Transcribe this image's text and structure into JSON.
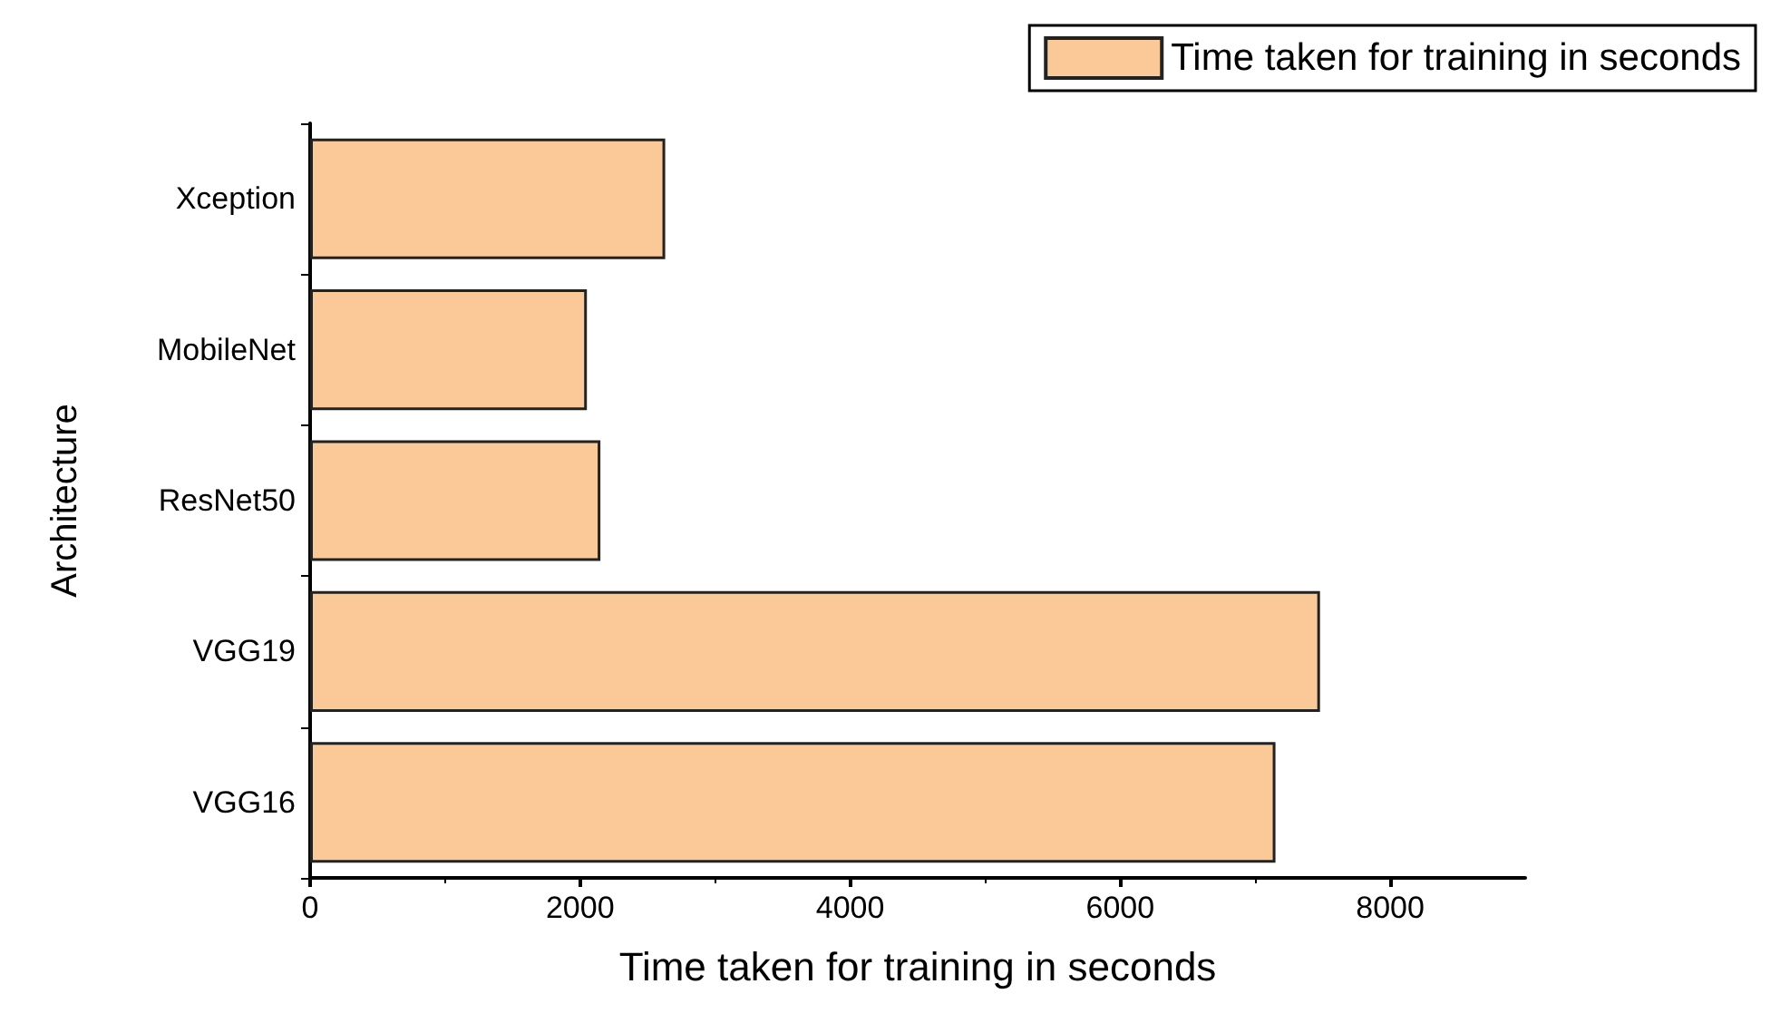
{
  "chart_data": {
    "type": "bar",
    "orientation": "horizontal",
    "xlabel": "Time taken for training in seconds",
    "ylabel": "Architecture",
    "categories": [
      "Xception",
      "MobileNet",
      "ResNet50",
      "VGG19",
      "VGG16"
    ],
    "series": [
      {
        "name": "Time taken for training in seconds",
        "color": "#fbc998",
        "values": [
          2630,
          2050,
          2150,
          7480,
          7150
        ]
      }
    ],
    "xlim": [
      0,
      9000
    ],
    "xticks": [
      0,
      2000,
      4000,
      6000,
      8000
    ],
    "grid": false,
    "legend": "top right"
  }
}
